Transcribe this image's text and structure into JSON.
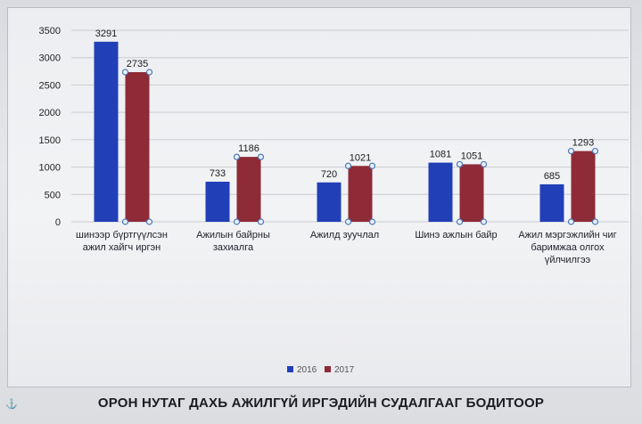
{
  "chart_data": {
    "type": "bar",
    "categories": [
      [
        "шинээр бүртгүүлсэн",
        "ажил хайгч иргэн"
      ],
      [
        "Ажилын байрны",
        "захиалга"
      ],
      [
        "Ажилд зуучлал"
      ],
      [
        "Шинэ ажлын байр"
      ],
      [
        "Ажил мэргэжлийн чиг",
        "баримжаа олгох",
        "үйлчилгээ"
      ]
    ],
    "series": [
      {
        "name": "2016",
        "values": [
          3291,
          733,
          720,
          1081,
          685
        ],
        "color": "#2140b8"
      },
      {
        "name": "2017",
        "values": [
          2735,
          1186,
          1021,
          1051,
          1293
        ],
        "color": "#8e2b37"
      }
    ],
    "ylim": [
      0,
      3500
    ],
    "yticks": [
      0,
      500,
      1000,
      1500,
      2000,
      2500,
      3000,
      3500
    ],
    "grid": true,
    "legend": "bottom"
  },
  "footer": {
    "title": "ОРОН НУТАГ ДАХЬ АЖИЛГҮЙ ИРГЭДИЙН СУДАЛГААГ БОДИТООР"
  },
  "corner_mark": "⚓"
}
